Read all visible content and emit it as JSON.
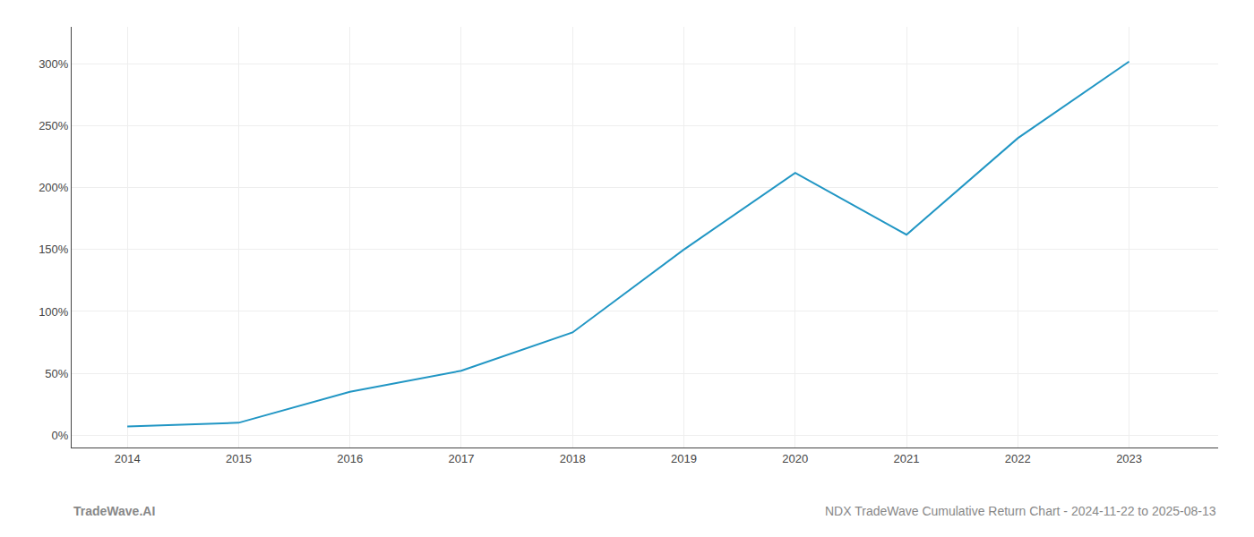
{
  "chart_data": {
    "type": "line",
    "x": [
      2014,
      2015,
      2016,
      2017,
      2018,
      2019,
      2020,
      2021,
      2022,
      2023
    ],
    "values": [
      7,
      10,
      35,
      52,
      83,
      150,
      212,
      162,
      240,
      302
    ],
    "color": "#2196c4",
    "xlim": [
      2013.5,
      2023.8
    ],
    "xticks": [
      2014,
      2015,
      2016,
      2017,
      2018,
      2019,
      2020,
      2021,
      2022,
      2023
    ],
    "ylim": [
      -10,
      330
    ],
    "yticks": [
      {
        "value": 0,
        "label": "0%"
      },
      {
        "value": 50,
        "label": "50%"
      },
      {
        "value": 100,
        "label": "100%"
      },
      {
        "value": 150,
        "label": "150%"
      },
      {
        "value": 200,
        "label": "200%"
      },
      {
        "value": 250,
        "label": "250%"
      },
      {
        "value": 300,
        "label": "300%"
      }
    ],
    "grid": true,
    "annotations": [
      "TradeWave.AI",
      "NDX TradeWave Cumulative Return Chart - 2024-11-22 to 2025-08-13"
    ]
  }
}
